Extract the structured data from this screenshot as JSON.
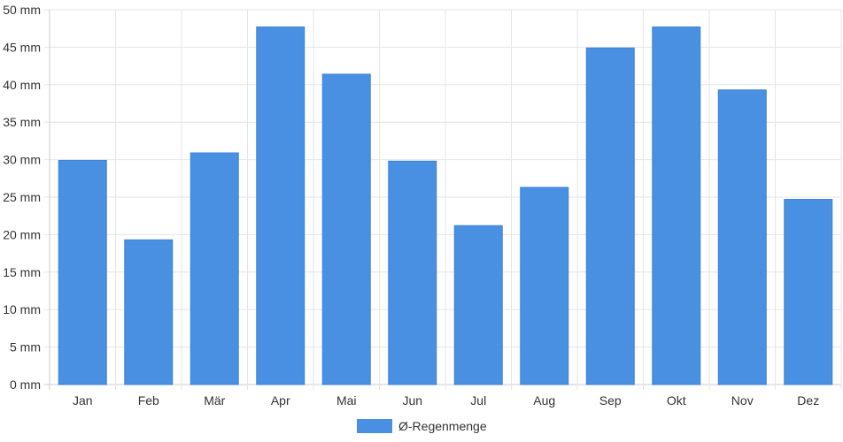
{
  "chart_data": {
    "type": "bar",
    "categories": [
      "Jan",
      "Feb",
      "Mär",
      "Apr",
      "Mai",
      "Jun",
      "Jul",
      "Aug",
      "Sep",
      "Okt",
      "Nov",
      "Dez"
    ],
    "series": [
      {
        "name": "Ø-Regenmenge",
        "color": "#4a90e2",
        "values": [
          29.9,
          19.3,
          30.9,
          47.7,
          41.4,
          29.8,
          21.2,
          26.3,
          44.9,
          47.7,
          39.3,
          24.7
        ]
      }
    ],
    "ylim": [
      0,
      50
    ],
    "yticks": [
      "0 mm",
      "5 mm",
      "10 mm",
      "15 mm",
      "20 mm",
      "25 mm",
      "30 mm",
      "35 mm",
      "40 mm",
      "45 mm",
      "50 mm"
    ],
    "ytick_values": [
      0,
      5,
      10,
      15,
      20,
      25,
      30,
      35,
      40,
      45,
      50
    ],
    "grid": true,
    "legend_position": "bottom"
  }
}
